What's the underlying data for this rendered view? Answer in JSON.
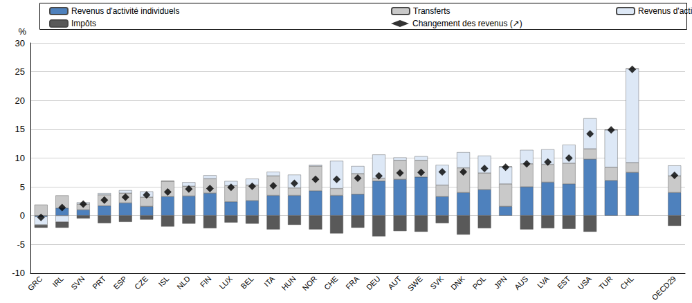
{
  "chart_data": {
    "type": "bar",
    "stacked": true,
    "grid": true,
    "legend": "top",
    "y_label": "%",
    "ylim": [
      -10,
      30
    ],
    "yticks": [
      -10,
      -5,
      0,
      5,
      10,
      15,
      20,
      25,
      30
    ],
    "categories": [
      "GRC",
      "IRL",
      "SVN",
      "PRT",
      "ESP",
      "CZE",
      "ISL",
      "NLD",
      "FIN",
      "LUX",
      "BEL",
      "ITA",
      "HUN",
      "NOR",
      "CHE",
      "FRA",
      "DEU",
      "AUT",
      "SWE",
      "SVK",
      "DNK",
      "POL",
      "JPN",
      "AUS",
      "LVA",
      "EST",
      "USA",
      "TUR",
      "CHL",
      null,
      "OECD29"
    ],
    "series": [
      {
        "name": "Revenus d'activité individuels",
        "type": "bar",
        "color": "#4e81bd",
        "values": [
          -0.2,
          1.3,
          1.0,
          1.7,
          2.2,
          1.6,
          3.3,
          3.4,
          3.9,
          2.4,
          2.6,
          3.5,
          3.5,
          4.3,
          3.5,
          3.7,
          6.0,
          6.3,
          6.7,
          3.3,
          4.0,
          4.5,
          1.6,
          5.0,
          5.8,
          5.5,
          9.8,
          6.1,
          7.5,
          null,
          4.0
        ]
      },
      {
        "name": "Transferts",
        "type": "bar",
        "color": "#c9c9c9",
        "values": [
          1.9,
          2.2,
          1.0,
          1.9,
          1.7,
          1.6,
          2.7,
          1.7,
          2.5,
          2.8,
          2.7,
          3.4,
          1.3,
          4.3,
          1.2,
          3.6,
          0.5,
          3.3,
          2.9,
          2.0,
          4.3,
          2.9,
          3.9,
          4.0,
          3.1,
          3.6,
          1.8,
          2.3,
          1.7,
          null,
          2.9
        ]
      },
      {
        "name": "Revenus d'activité des autres membres du ménage",
        "type": "bar",
        "color": "#dde8f6",
        "values": [
          -1.4,
          -1.1,
          0.3,
          0.3,
          0.5,
          1.0,
          0.0,
          0.7,
          0.6,
          0.8,
          1.1,
          0.7,
          2.3,
          0.2,
          4.8,
          1.3,
          4.1,
          0.5,
          0.7,
          3.5,
          2.7,
          3.0,
          3.0,
          2.4,
          2.6,
          3.2,
          5.3,
          6.5,
          16.3,
          null,
          1.8
        ]
      },
      {
        "name": "Impôts",
        "type": "bar",
        "color": "#595959",
        "values": [
          -0.5,
          -1.0,
          -0.5,
          -1.3,
          -1.1,
          -0.7,
          -1.9,
          -1.4,
          -2.2,
          -1.2,
          -1.4,
          -2.4,
          -1.6,
          -2.4,
          -3.1,
          -2.1,
          -3.6,
          -2.7,
          -2.8,
          -1.3,
          -3.3,
          -2.2,
          0.0,
          -2.4,
          -2.2,
          -2.3,
          -2.8,
          0.0,
          0.0,
          null,
          -1.8
        ]
      },
      {
        "name": "Changement des revenus (↗)",
        "type": "scatter",
        "marker": "diamond",
        "color": "#000000",
        "values": [
          -0.3,
          1.4,
          2.0,
          2.7,
          3.2,
          3.6,
          4.1,
          4.6,
          4.7,
          4.9,
          5.1,
          5.2,
          5.6,
          6.3,
          6.3,
          6.5,
          6.9,
          7.4,
          7.5,
          7.6,
          7.6,
          8.2,
          8.4,
          9.0,
          9.3,
          10.0,
          14.2,
          14.9,
          25.4,
          null,
          7.0
        ]
      }
    ]
  }
}
